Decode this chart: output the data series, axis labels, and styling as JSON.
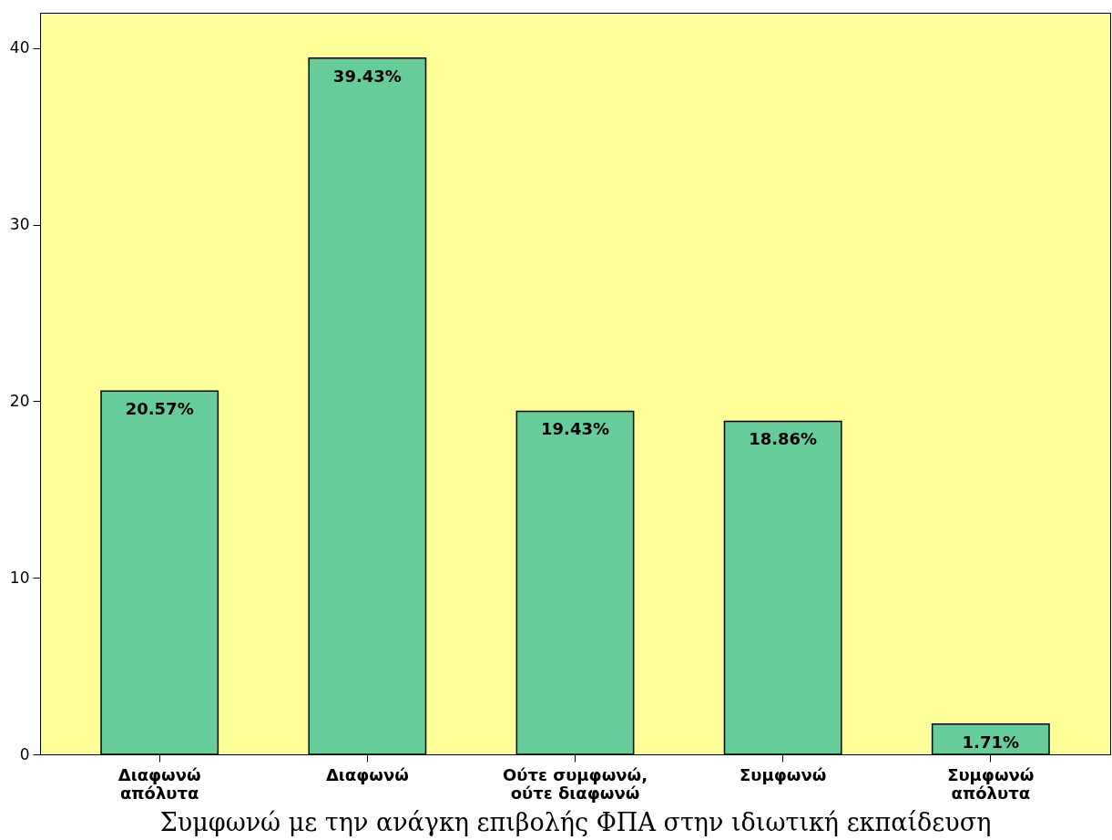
{
  "chart_data": {
    "type": "bar",
    "xlabel": "Συμφωνώ με την ανάγκη επιβολής ΦΠΑ στην ιδιωτική εκπαίδευση",
    "categories": [
      "Διαφωνώ απόλυτα",
      "Διαφωνώ",
      "Ούτε συμφωνώ, ούτε διαφωνώ",
      "Συμφωνώ",
      "Συμφωνώ απόλυτα"
    ],
    "values": [
      20.57,
      39.43,
      19.43,
      18.86,
      1.71
    ],
    "value_labels": [
      "20.57%",
      "39.43%",
      "19.43%",
      "18.86%",
      "1.71%"
    ],
    "color": "#66cc99",
    "ylim": [
      0,
      42
    ],
    "yticks": [
      0,
      10,
      20,
      30,
      40
    ],
    "grid": false
  }
}
